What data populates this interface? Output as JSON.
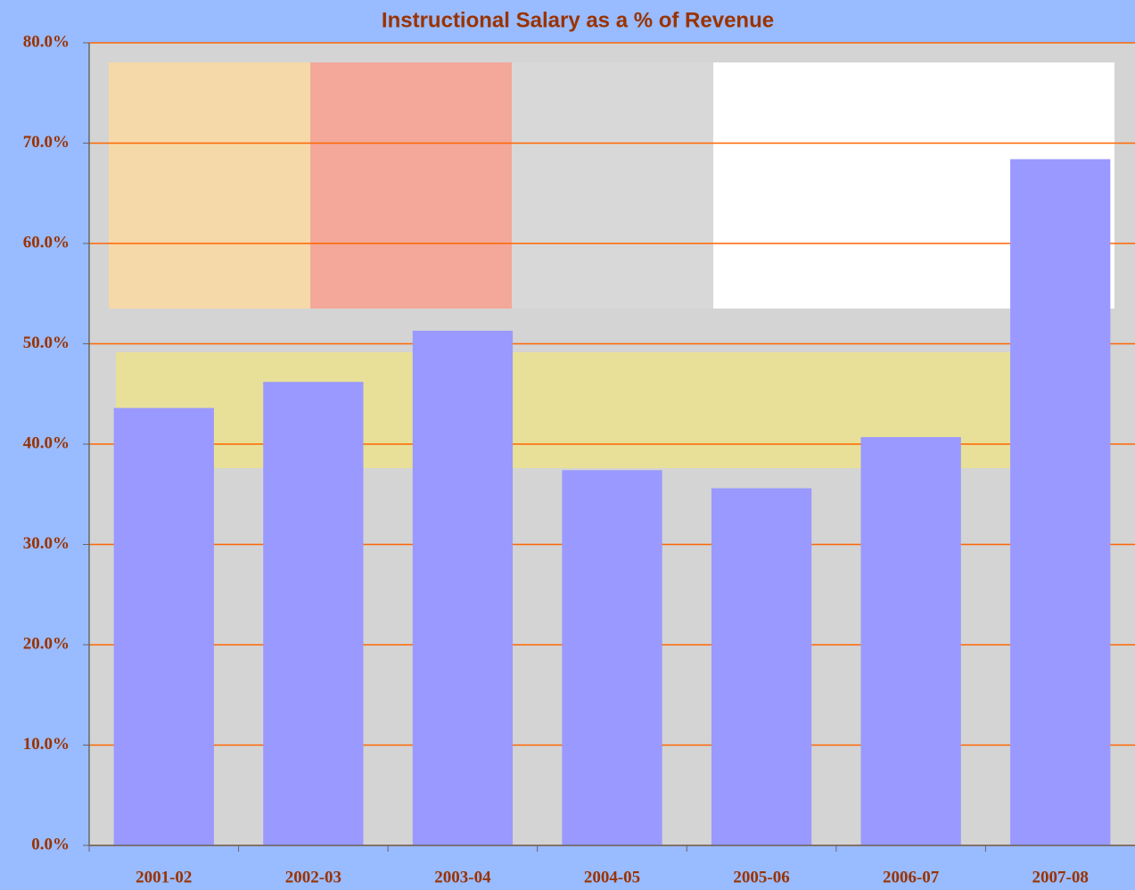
{
  "chart_data": {
    "type": "bar",
    "title": "Instructional Salary as a % of Revenue",
    "categories": [
      "2001-02",
      "2002-03",
      "2003-04",
      "2004-05",
      "2005-06",
      "2006-07",
      "2007-08"
    ],
    "values": [
      43.6,
      46.2,
      51.3,
      37.4,
      35.6,
      40.7,
      68.4
    ],
    "color": "#9999ff",
    "ylim": [
      0,
      80
    ],
    "yticks": [
      {
        "value": 0,
        "label": "0.0%"
      },
      {
        "value": 10,
        "label": "10.0%"
      },
      {
        "value": 20,
        "label": "20.0%"
      },
      {
        "value": 30,
        "label": "30.0%"
      },
      {
        "value": 40,
        "label": "40.0%"
      },
      {
        "value": 50,
        "label": "50.0%"
      },
      {
        "value": 60,
        "label": "60.0%"
      },
      {
        "value": 70,
        "label": "70.0%"
      },
      {
        "value": 80,
        "label": "80.0%"
      }
    ],
    "grid": true
  }
}
